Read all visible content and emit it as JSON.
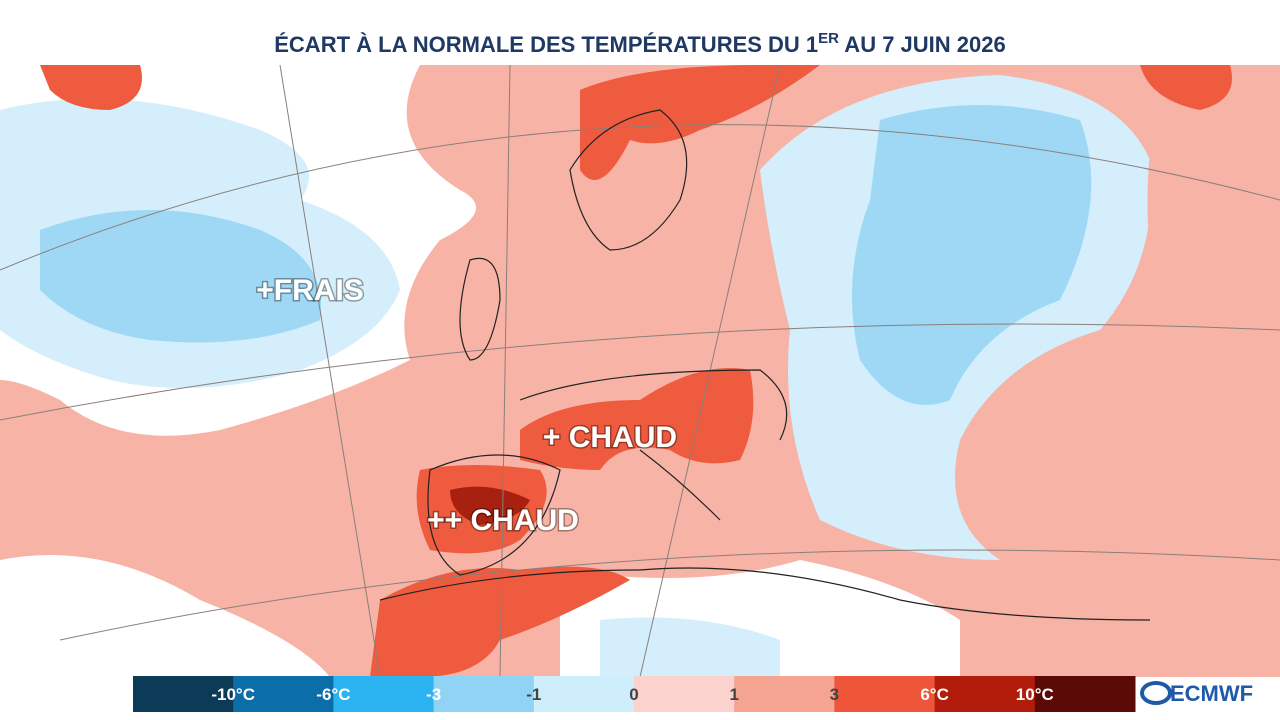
{
  "header": {
    "title_main": "ÉCART À LA NORMALE DES TEMPÉRATURES DU 1",
    "title_sup": "ER",
    "title_end": " AU 7 JUIN 2026"
  },
  "map": {
    "labels": [
      "+FRAIS",
      "+ CHAUD",
      "++ CHAUD"
    ]
  },
  "legend": {
    "labels": [
      "-10°C",
      "-6°C",
      "-3",
      "-1",
      "0",
      "1",
      "3",
      "6°C",
      "10°C"
    ]
  },
  "logo": {
    "text": "ECMWF"
  }
}
